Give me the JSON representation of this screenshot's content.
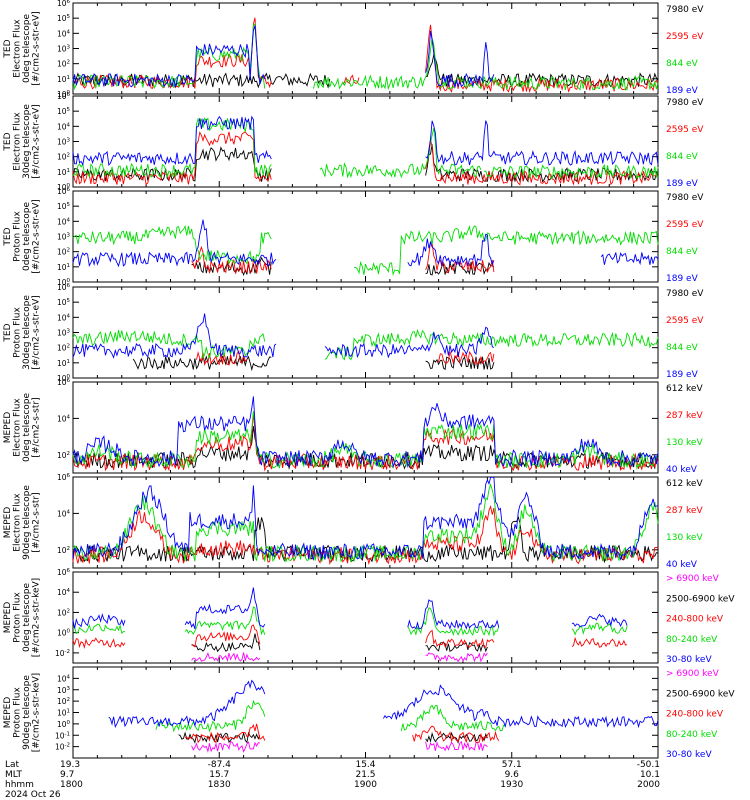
{
  "colors": {
    "black": "#000000",
    "red": "#ff0000",
    "green": "#00dd00",
    "blue": "#0000ff",
    "magenta": "#ff00ff"
  },
  "chart_data": [
    {
      "type": "line",
      "ylabel": [
        "TED",
        "Electron Flux",
        "0deg telescope",
        "[#/cm2-s-str-eV]"
      ],
      "ylim_log10": [
        0,
        6
      ],
      "yticks_log10": [
        0,
        1,
        2,
        3,
        4,
        5,
        6
      ],
      "legend": [
        {
          "label": "7980 eV",
          "color": "black"
        },
        {
          "label": "2595 eV",
          "color": "red"
        },
        {
          "label": "844 eV",
          "color": "green"
        },
        {
          "label": "189 eV",
          "color": "blue"
        }
      ]
    },
    {
      "type": "line",
      "ylabel": [
        "TED",
        "Electron Flux",
        "30deg telescope",
        "[#/cm2-s-str-eV]"
      ],
      "ylim_log10": [
        0,
        6
      ],
      "yticks_log10": [
        0,
        1,
        2,
        3,
        4,
        5,
        6
      ],
      "legend": [
        {
          "label": "7980 eV",
          "color": "black"
        },
        {
          "label": "2595 eV",
          "color": "red"
        },
        {
          "label": "844 eV",
          "color": "green"
        },
        {
          "label": "189 eV",
          "color": "blue"
        }
      ]
    },
    {
      "type": "line",
      "ylabel": [
        "TED",
        "Proton Flux",
        "0deg telescope",
        "[#/cm2-s-str-eV]"
      ],
      "ylim_log10": [
        0,
        6
      ],
      "yticks_log10": [
        0,
        1,
        2,
        3,
        4,
        5,
        6
      ],
      "legend": [
        {
          "label": "7980 eV",
          "color": "black"
        },
        {
          "label": "2595 eV",
          "color": "red"
        },
        {
          "label": "844 eV",
          "color": "green"
        },
        {
          "label": "189 eV",
          "color": "blue"
        }
      ]
    },
    {
      "type": "line",
      "ylabel": [
        "TED",
        "Proton Flux",
        "30deg telescope",
        "[#/cm2-s-str-eV]"
      ],
      "ylim_log10": [
        0,
        6
      ],
      "yticks_log10": [
        0,
        1,
        2,
        3,
        4,
        5,
        6
      ],
      "legend": [
        {
          "label": "7980 eV",
          "color": "black"
        },
        {
          "label": "2595 eV",
          "color": "red"
        },
        {
          "label": "844 eV",
          "color": "green"
        },
        {
          "label": "189 eV",
          "color": "blue"
        }
      ]
    },
    {
      "type": "line",
      "ylabel": [
        "MEPED",
        "Electron Flux",
        "0deg telescope",
        "[#/cm2-s-str]"
      ],
      "ylim_log10": [
        1,
        6
      ],
      "yticks_log10": [
        2,
        4,
        6
      ],
      "legend": [
        {
          "label": "612 keV",
          "color": "black"
        },
        {
          "label": "287 keV",
          "color": "red"
        },
        {
          "label": "130 keV",
          "color": "green"
        },
        {
          "label": "40 keV",
          "color": "blue"
        }
      ]
    },
    {
      "type": "line",
      "ylabel": [
        "MEPED",
        "Electron Flux",
        "90deg telescope",
        "[#/cm2-s-str]"
      ],
      "ylim_log10": [
        1,
        6
      ],
      "yticks_log10": [
        2,
        4,
        6
      ],
      "legend": [
        {
          "label": "612 keV",
          "color": "black"
        },
        {
          "label": "287 keV",
          "color": "red"
        },
        {
          "label": "130 keV",
          "color": "green"
        },
        {
          "label": "40 keV",
          "color": "blue"
        }
      ]
    },
    {
      "type": "line",
      "ylabel": [
        "MEPED",
        "Proton Flux",
        "0deg telescope",
        "[#/cm2-s-str-keV]"
      ],
      "ylim_log10": [
        -3,
        6
      ],
      "yticks_log10": [
        -2,
        0,
        2,
        4,
        6
      ],
      "legend": [
        {
          "label": "> 6900 keV",
          "color": "magenta"
        },
        {
          "label": "2500-6900 keV",
          "color": "black"
        },
        {
          "label": "240-800 keV",
          "color": "red"
        },
        {
          "label": "80-240 keV",
          "color": "green"
        },
        {
          "label": "30-80 keV",
          "color": "blue"
        }
      ]
    },
    {
      "type": "line",
      "ylabel": [
        "MEPED",
        "Proton Flux",
        "90deg telescope",
        "[#/cm2-s-str-keV]"
      ],
      "ylim_log10": [
        -3,
        5
      ],
      "yticks_log10": [
        -2,
        -1,
        0,
        1,
        2,
        3,
        4
      ],
      "legend": [
        {
          "label": "> 6900 keV",
          "color": "magenta"
        },
        {
          "label": "2500-6900 keV",
          "color": "black"
        },
        {
          "label": "240-800 keV",
          "color": "red"
        },
        {
          "label": "80-240 keV",
          "color": "green"
        },
        {
          "label": "30-80 keV",
          "color": "blue"
        }
      ]
    }
  ],
  "footer": {
    "row_labels": [
      "Lat",
      "MLT",
      "hhmm",
      "2024 Oct 26"
    ],
    "ticks": [
      {
        "lat": "19.3",
        "mlt": "9.7",
        "hhmm": "1800"
      },
      {
        "lat": "-87.4",
        "mlt": "15.7",
        "hhmm": "1830"
      },
      {
        "lat": "15.4",
        "mlt": "21.5",
        "hhmm": "1900"
      },
      {
        "lat": "57.1",
        "mlt": "9.6",
        "hhmm": "1930"
      },
      {
        "lat": "-50.1",
        "mlt": "10.1",
        "hhmm": "2000"
      }
    ]
  }
}
